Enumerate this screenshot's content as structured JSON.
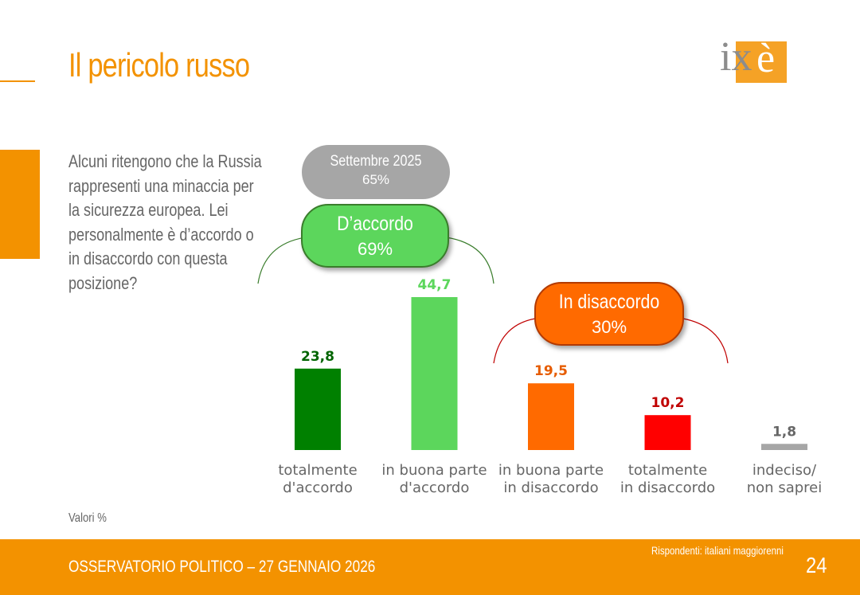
{
  "header": {
    "title": "Il pericolo russo",
    "logo_text": "ixè"
  },
  "question": "Alcuni ritengono che la Russia rappresenti una minaccia per la sicurezza europea. Lei personalmente è d’accordo o in disaccordo con questa posizione?",
  "summary": {
    "previous": {
      "label": "Settembre 2025",
      "value": "65%"
    },
    "agree": {
      "label": "D’accordo",
      "value": "69%"
    },
    "disagree": {
      "label": "In disaccordo",
      "value": "30%"
    }
  },
  "note": "Valori %",
  "footer": {
    "left": "OSSERVATORIO POLITICO – 27 GENNAIO 2026",
    "respondents": "Rispondenti: italiani maggiorenni",
    "page": "24"
  },
  "colors": {
    "accent": "#f39200",
    "agree_dark": "#008000",
    "agree_light": "#5cd65c",
    "disagree_light": "#ff6a00",
    "disagree_dark": "#ff0000",
    "undecided": "#a6a6a6"
  },
  "chart_data": {
    "type": "bar",
    "categories": [
      [
        "totalmente",
        "d'accordo"
      ],
      [
        "in buona parte",
        "d'accordo"
      ],
      [
        "in buona parte",
        "in disaccordo"
      ],
      [
        "totalmente",
        "in disaccordo"
      ],
      [
        "indeciso/",
        "non saprei"
      ]
    ],
    "values": [
      23.8,
      44.7,
      19.5,
      10.2,
      1.8
    ],
    "value_labels": [
      "23,8",
      "44,7",
      "19,5",
      "10,2",
      "1,8"
    ],
    "bar_colors": [
      "#008000",
      "#5cd65c",
      "#ff6a00",
      "#ff0000",
      "#a6a6a6"
    ],
    "label_colors": [
      "#006400",
      "#5cd65c",
      "#e65c00",
      "#c00000",
      "#666666"
    ],
    "ylim": [
      0,
      44.7
    ]
  }
}
